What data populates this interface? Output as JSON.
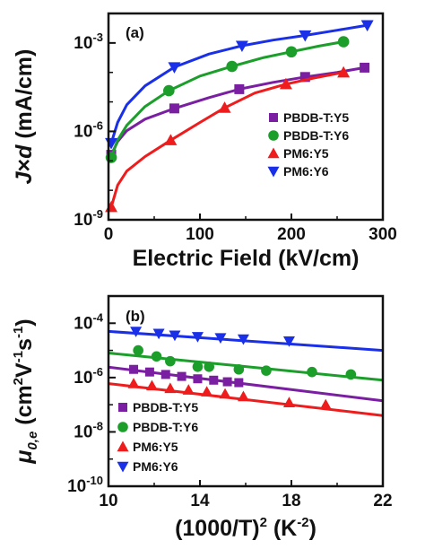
{
  "chart_data": [
    {
      "type": "scatter",
      "panel_label": "(a)",
      "xlabel": "Electric Field (kV/cm)",
      "ylabel_parts": [
        "J",
        "×",
        "d",
        " (mA/cm)"
      ],
      "xlim": [
        0,
        300
      ],
      "ylim": [
        1e-09,
        0.01
      ],
      "y_scale": "log",
      "x_ticks": [
        "0",
        "100",
        "200",
        "300"
      ],
      "y_ticks": [
        {
          "base": "10",
          "exp": "-9"
        },
        {
          "base": "10",
          "exp": "-6"
        },
        {
          "base": "10",
          "exp": "-3"
        }
      ],
      "legend_position": "middle-right",
      "series": [
        {
          "name": "PBDB-T:Y5",
          "color": "#7b1fa2",
          "marker": "square",
          "x": [
            3,
            72,
            143,
            215,
            280
          ],
          "y": [
            1.6e-07,
            6e-06,
            2.7e-05,
            7e-05,
            0.000145
          ],
          "fit_x": [
            3,
            10,
            20,
            40,
            72,
            110,
            143,
            180,
            215,
            250,
            280
          ],
          "fit_y": [
            1.6e-07,
            4.5e-07,
            1.05e-06,
            2.6e-06,
            6e-06,
            1.4e-05,
            2.7e-05,
            4.6e-05,
            7e-05,
            0.0001,
            0.000145
          ]
        },
        {
          "name": "PBDB-T:Y6",
          "color": "#1b9e2a",
          "marker": "circle",
          "x": [
            3,
            66,
            135,
            200,
            257
          ],
          "y": [
            1.3e-07,
            2.4e-05,
            0.00016,
            0.0005,
            0.0011
          ],
          "fit_x": [
            3,
            10,
            20,
            40,
            66,
            100,
            135,
            170,
            200,
            230,
            257
          ],
          "fit_y": [
            1.3e-07,
            5e-07,
            1.6e-06,
            7e-06,
            2.4e-05,
            7.5e-05,
            0.00016,
            0.00032,
            0.0005,
            0.00078,
            0.0011
          ]
        },
        {
          "name": "PM6:Y5",
          "color": "#ee1c1c",
          "marker": "triangle-up",
          "x": [
            3,
            68,
            127,
            194,
            257
          ],
          "y": [
            2.7e-09,
            5e-07,
            6.3e-06,
            4e-05,
            0.0001
          ],
          "fit_x": [
            3,
            10,
            20,
            40,
            68,
            100,
            127,
            160,
            194,
            225,
            257
          ],
          "fit_y": [
            2.7e-09,
            1.5e-08,
            4.5e-08,
            1.4e-07,
            5e-07,
            2e-06,
            6.3e-06,
            2e-05,
            4e-05,
            6.5e-05,
            0.0001
          ]
        },
        {
          "name": "PM6:Y6",
          "color": "#1a2fe8",
          "marker": "triangle-down",
          "x": [
            3,
            72,
            146,
            215,
            283
          ],
          "y": [
            4e-07,
            0.00015,
            0.0008,
            0.0018,
            0.004
          ],
          "fit_x": [
            3,
            10,
            20,
            40,
            72,
            110,
            146,
            180,
            215,
            250,
            283
          ],
          "fit_y": [
            4e-07,
            2e-06,
            8e-06,
            3.5e-05,
            0.00015,
            0.00042,
            0.0008,
            0.00125,
            0.0018,
            0.0027,
            0.004
          ]
        }
      ]
    },
    {
      "type": "scatter",
      "panel_label": "(b)",
      "xlabel_parts": [
        "(1000/T)",
        "2",
        " (K",
        "-2",
        ")"
      ],
      "ylabel_parts": [
        "μ",
        "0,e",
        " (cm",
        "2",
        "V",
        "-1",
        "s",
        "-1",
        ")"
      ],
      "xlim": [
        10,
        22
      ],
      "ylim": [
        1e-10,
        0.001
      ],
      "y_scale": "log",
      "x_ticks": [
        "10",
        "14",
        "18",
        "22"
      ],
      "y_ticks": [
        {
          "base": "10",
          "exp": "-10"
        },
        {
          "base": "10",
          "exp": "-8"
        },
        {
          "base": "10",
          "exp": "-6"
        },
        {
          "base": "10",
          "exp": "-4"
        }
      ],
      "legend_position": "bottom-left",
      "series": [
        {
          "name": "PBDB-T:Y5",
          "color": "#7b1fa2",
          "marker": "square",
          "x": [
            11.1,
            11.8,
            12.5,
            13.2,
            13.9,
            14.6,
            15.2,
            15.7
          ],
          "y": [
            2e-06,
            1.6e-06,
            1.3e-06,
            1.1e-06,
            9e-07,
            8e-07,
            7e-07,
            6.5e-07
          ],
          "fit_x": [
            10,
            22
          ],
          "fit_y": [
            2.4e-06,
            1.4e-07
          ]
        },
        {
          "name": "PBDB-T:Y6",
          "color": "#1b9e2a",
          "marker": "circle",
          "x": [
            11.3,
            12.1,
            12.7,
            13.9,
            14.4,
            15.7,
            16.9,
            18.9,
            20.6
          ],
          "y": [
            1e-05,
            6e-06,
            4e-06,
            2.5e-06,
            2.5e-06,
            2e-06,
            1.8e-06,
            1.6e-06,
            1.3e-06
          ],
          "fit_x": [
            10,
            22
          ],
          "fit_y": [
            8e-06,
            8e-07
          ]
        },
        {
          "name": "PM6:Y5",
          "color": "#ee1c1c",
          "marker": "triangle-up",
          "x": [
            11.1,
            11.9,
            12.7,
            13.5,
            14.3,
            15.1,
            15.9,
            17.9,
            19.5
          ],
          "y": [
            6e-07,
            5e-07,
            4e-07,
            3.5e-07,
            3e-07,
            2.5e-07,
            2e-07,
            1.2e-07,
            1e-07
          ],
          "fit_x": [
            10,
            22
          ],
          "fit_y": [
            6e-07,
            4e-08
          ]
        },
        {
          "name": "PM6:Y6",
          "color": "#1a2fe8",
          "marker": "triangle-down",
          "x": [
            11.2,
            12.2,
            12.9,
            13.9,
            14.9,
            15.9,
            17.9
          ],
          "y": [
            5e-05,
            4.2e-05,
            3.6e-05,
            3.2e-05,
            2.9e-05,
            2.6e-05,
            2.2e-05
          ],
          "fit_x": [
            10,
            22
          ],
          "fit_y": [
            5e-05,
            1e-05
          ]
        }
      ]
    }
  ]
}
